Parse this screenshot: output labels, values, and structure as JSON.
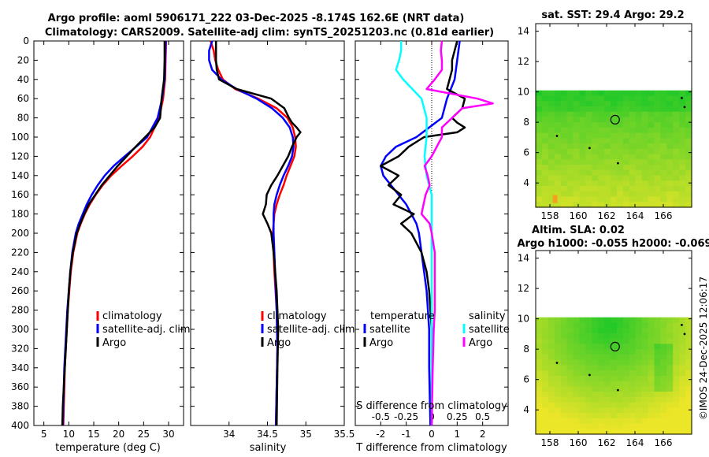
{
  "header": {
    "title_line1": "Argo profile: aoml 5906171_222 03-Dec-2025 -8.174S 162.6E (NRT data)",
    "title_line2": "Climatology: CARS2009. Satellite-adj clim: synTS_20251203.nc (0.81d earlier)",
    "sst_title": "sat. SST: 29.4 Argo: 29.2",
    "sla_title1": "Altim. SLA: 0.02",
    "sla_title2": "Argo h1000: -0.055 h2000: -0.069",
    "stamp": "©IMOS 24-Dec-2025 12:06:17"
  },
  "colors": {
    "climatology": "#ff0000",
    "satellite": "#0000ff",
    "argo": "#000000",
    "sat_salinity": "#00ffff",
    "argo_salinity": "#ff00ff"
  },
  "chart_data": [
    {
      "type": "line",
      "panel": "temperature",
      "xlabel": "temperature (deg C)",
      "ylabel": "depth",
      "xlim": [
        3,
        33
      ],
      "ylim": [
        400,
        0
      ],
      "xticks": [
        5,
        10,
        15,
        20,
        25,
        30
      ],
      "yticks": [
        0,
        20,
        40,
        60,
        80,
        100,
        120,
        140,
        160,
        180,
        200,
        220,
        240,
        260,
        280,
        300,
        320,
        340,
        360,
        380,
        400
      ],
      "legend": {
        "position": "bottom-right",
        "entries": [
          "climatology",
          "satellite-adj. clim",
          "Argo"
        ]
      },
      "series": [
        {
          "name": "climatology",
          "color": "#ff0000",
          "depth": [
            0,
            20,
            40,
            60,
            80,
            100,
            110,
            120,
            130,
            140,
            150,
            160,
            170,
            180,
            190,
            200,
            220,
            240,
            260,
            280,
            300,
            320,
            340,
            360,
            380,
            400
          ],
          "value": [
            29.5,
            29.4,
            29.3,
            28.9,
            28.1,
            26.3,
            24.8,
            22.8,
            20.6,
            18.5,
            16.8,
            15.4,
            14.2,
            13.2,
            12.4,
            11.7,
            10.9,
            10.4,
            10.1,
            9.8,
            9.6,
            9.4,
            9.2,
            9.1,
            9.0,
            8.9
          ]
        },
        {
          "name": "satellite-adj. clim",
          "color": "#0000ff",
          "depth": [
            0,
            20,
            40,
            60,
            80,
            100,
            110,
            120,
            130,
            140,
            150,
            160,
            170,
            180,
            190,
            200,
            220,
            240,
            260,
            280,
            300,
            320,
            340,
            360,
            380,
            400
          ],
          "value": [
            29.4,
            29.3,
            29.2,
            28.7,
            27.8,
            25.7,
            23.5,
            21.2,
            19.0,
            17.2,
            15.8,
            14.6,
            13.6,
            12.8,
            12.0,
            11.4,
            10.7,
            10.3,
            10.0,
            9.7,
            9.5,
            9.3,
            9.1,
            9.0,
            8.9,
            8.8
          ]
        },
        {
          "name": "Argo",
          "color": "#000000",
          "depth": [
            0,
            20,
            40,
            60,
            80,
            90,
            100,
            110,
            120,
            130,
            140,
            150,
            160,
            170,
            180,
            190,
            200,
            220,
            240,
            260,
            280,
            300,
            320,
            340,
            360,
            380,
            400
          ],
          "value": [
            29.2,
            29.2,
            29.1,
            28.6,
            28.3,
            27.2,
            25.3,
            23.4,
            21.6,
            19.8,
            18.2,
            16.6,
            15.3,
            14.0,
            13.1,
            12.3,
            11.6,
            10.8,
            10.3,
            10.0,
            9.8,
            9.6,
            9.4,
            9.2,
            9.0,
            8.8,
            8.7
          ]
        }
      ]
    },
    {
      "type": "line",
      "panel": "salinity",
      "xlabel": "salinity",
      "ylabel": "depth",
      "xlim": [
        33.5,
        35.5
      ],
      "ylim": [
        400,
        0
      ],
      "xticks": [
        34,
        34.5,
        35,
        35.5
      ],
      "legend": {
        "position": "bottom-right",
        "entries": [
          "climatology",
          "satellite-adj. clim",
          "Argo"
        ]
      },
      "series": [
        {
          "name": "climatology",
          "color": "#ff0000",
          "depth": [
            0,
            10,
            20,
            30,
            40,
            50,
            60,
            70,
            80,
            90,
            100,
            110,
            120,
            130,
            140,
            150,
            160,
            170,
            180,
            190,
            200,
            240,
            280,
            320,
            360,
            400
          ],
          "value": [
            33.76,
            33.8,
            33.82,
            33.86,
            33.92,
            34.08,
            34.38,
            34.62,
            34.76,
            34.83,
            34.86,
            34.87,
            34.85,
            34.8,
            34.75,
            34.71,
            34.66,
            34.62,
            34.59,
            34.58,
            34.57,
            34.59,
            34.62,
            34.63,
            34.62,
            34.61
          ]
        },
        {
          "name": "satellite-adj. clim",
          "color": "#0000ff",
          "depth": [
            0,
            10,
            20,
            30,
            40,
            50,
            60,
            70,
            80,
            90,
            100,
            110,
            120,
            130,
            140,
            150,
            160,
            170,
            180,
            190,
            200,
            240,
            280,
            320,
            360,
            400
          ],
          "value": [
            33.78,
            33.74,
            33.74,
            33.78,
            33.9,
            34.1,
            34.36,
            34.56,
            34.7,
            34.79,
            34.83,
            34.84,
            34.82,
            34.77,
            34.71,
            34.66,
            34.62,
            34.59,
            34.58,
            34.58,
            34.58,
            34.6,
            34.62,
            34.63,
            34.62,
            34.61
          ]
        },
        {
          "name": "Argo",
          "color": "#000000",
          "depth": [
            0,
            10,
            20,
            30,
            40,
            50,
            60,
            70,
            80,
            85,
            90,
            95,
            100,
            110,
            120,
            130,
            140,
            150,
            160,
            170,
            180,
            190,
            200,
            220,
            240,
            260,
            280,
            300,
            340,
            400
          ],
          "value": [
            33.83,
            33.83,
            33.83,
            33.84,
            33.87,
            34.1,
            34.55,
            34.72,
            34.78,
            34.82,
            34.88,
            34.93,
            34.88,
            34.82,
            34.77,
            34.7,
            34.63,
            34.55,
            34.49,
            34.48,
            34.44,
            34.5,
            34.55,
            34.58,
            34.6,
            34.62,
            34.63,
            34.64,
            34.63,
            34.62
          ]
        }
      ]
    },
    {
      "type": "line",
      "panel": "difference",
      "xlabel": "T difference from climatology",
      "x2label": "S difference from climatology",
      "ylabel": "depth",
      "xlim": [
        -3,
        3
      ],
      "ylim": [
        400,
        0
      ],
      "xticks": [
        "-2",
        "-1",
        "0",
        "1",
        "2"
      ],
      "x2ticks": [
        "-0.5",
        "-0.25",
        "0",
        "0.25",
        "0.5"
      ],
      "legend": {
        "position": "bottom",
        "headers": [
          "temperature",
          "salinity"
        ],
        "entries": [
          "satellite",
          "Argo",
          "satellite",
          "Argo"
        ]
      },
      "series": [
        {
          "name": "temperature satellite",
          "color": "#0000ff",
          "depth": [
            0,
            20,
            40,
            60,
            80,
            100,
            110,
            120,
            130,
            140,
            150,
            160,
            170,
            180,
            190,
            200,
            220,
            240,
            260,
            280,
            300,
            340,
            400
          ],
          "value": [
            1.1,
            1.0,
            0.9,
            0.6,
            0.4,
            -0.6,
            -1.4,
            -1.8,
            -2.0,
            -1.9,
            -1.6,
            -1.3,
            -1.0,
            -0.8,
            -0.6,
            -0.5,
            -0.4,
            -0.3,
            -0.2,
            -0.15,
            -0.1,
            -0.1,
            -0.05
          ]
        },
        {
          "name": "temperature Argo",
          "color": "#000000",
          "depth": [
            0,
            10,
            20,
            30,
            40,
            50,
            60,
            70,
            80,
            85,
            90,
            95,
            100,
            110,
            120,
            130,
            140,
            150,
            160,
            170,
            180,
            190,
            200,
            220,
            240,
            260,
            280,
            300,
            340,
            400
          ],
          "value": [
            1.0,
            0.9,
            0.8,
            0.8,
            0.7,
            0.6,
            1.3,
            1.2,
            0.8,
            1.0,
            1.3,
            1.0,
            -0.3,
            -0.9,
            -1.3,
            -2.0,
            -1.3,
            -1.7,
            -1.2,
            -1.5,
            -0.7,
            -1.2,
            -0.8,
            -0.4,
            -0.2,
            -0.1,
            -0.05,
            0.0,
            0.0,
            0.0
          ]
        },
        {
          "name": "salinity satellite",
          "color": "#00ffff",
          "depth": [
            0,
            10,
            20,
            30,
            40,
            60,
            80,
            100,
            120,
            140,
            160,
            180,
            200,
            240,
            280,
            320,
            360,
            400
          ],
          "value": [
            -0.3,
            -0.3,
            -0.32,
            -0.35,
            -0.28,
            -0.1,
            -0.05,
            -0.05,
            -0.07,
            -0.05,
            0.0,
            0.0,
            0.0,
            0.0,
            0.0,
            0.0,
            0.0,
            0.0
          ]
        },
        {
          "name": "salinity Argo",
          "color": "#ff00ff",
          "depth": [
            0,
            10,
            20,
            30,
            40,
            50,
            60,
            65,
            70,
            80,
            90,
            100,
            110,
            120,
            130,
            140,
            150,
            160,
            170,
            180,
            190,
            200,
            220,
            240,
            260,
            280,
            300,
            340,
            400
          ],
          "value": [
            0.1,
            0.09,
            0.1,
            0.1,
            0.03,
            -0.05,
            0.45,
            0.6,
            0.3,
            0.2,
            0.1,
            0.1,
            0.05,
            0.0,
            -0.07,
            -0.04,
            -0.02,
            -0.06,
            -0.08,
            -0.1,
            -0.02,
            0.0,
            0.03,
            0.03,
            0.03,
            0.03,
            0.02,
            0.01,
            0.0
          ]
        }
      ]
    },
    {
      "type": "heatmap",
      "panel": "satellite SST map",
      "xticks": [
        158,
        160,
        162,
        164,
        166
      ],
      "yticks": [
        4,
        6,
        8,
        10,
        12,
        14
      ],
      "xlim": [
        157,
        168
      ],
      "ylim": [
        2.4,
        14.5
      ],
      "data_top": 10.1,
      "argo_location": [
        162.6,
        8.17
      ]
    },
    {
      "type": "heatmap",
      "panel": "altimetry SLA map",
      "xticks": [
        158,
        160,
        162,
        164,
        166
      ],
      "yticks": [
        4,
        6,
        8,
        10,
        12,
        14
      ],
      "xlim": [
        157,
        168
      ],
      "ylim": [
        2.4,
        14.5
      ],
      "data_top": 10.1,
      "argo_location": [
        162.6,
        8.17
      ]
    }
  ]
}
